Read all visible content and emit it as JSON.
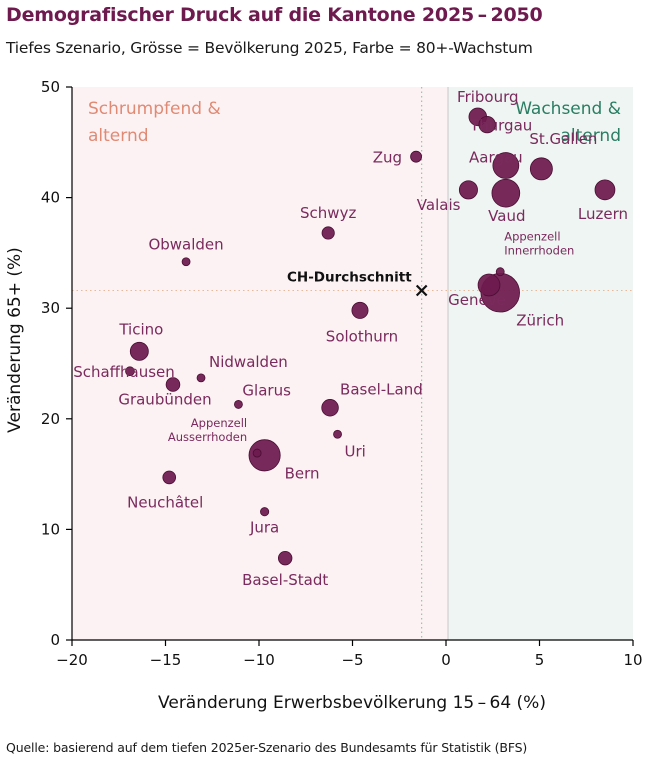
{
  "title": "Demografischer Druck auf die Kantone 2025 – 2050",
  "subtitle": "Tiefes Szenario, Grösse = Bevölkerung 2025, Farbe = 80+-Wachstum",
  "source": "Quelle: basierend auf dem tiefen 2025er-Szenario des Bundesamts für Statistik (BFS)",
  "colors": {
    "point": "#6e1a4f",
    "label": "#7a2a5c",
    "left_region": "#fcf2f3",
    "right_region": "#eef5f2",
    "left_region_text": "#e08a74",
    "right_region_text": "#2a7d63",
    "avg_v_line": "#7fbf9f",
    "avg_h_line": "#e8b89a",
    "zero_line": "#c8c8c8"
  },
  "regions": {
    "left": [
      "Schrumpfend &",
      "alternd"
    ],
    "right": [
      "Wachsend &",
      "alternd"
    ]
  },
  "chart_data": {
    "type": "scatter",
    "xlabel": "Veränderung Erwerbsbevölkerung 15 – 64 (%)",
    "ylabel": "Veränderung 65+ (%)",
    "xlim": [
      -20,
      10
    ],
    "ylim": [
      0,
      50
    ],
    "xticks": [
      "−20",
      "−15",
      "−10",
      "−5",
      "0",
      "5",
      "10"
    ],
    "yticks": [
      "0",
      "10",
      "20",
      "30",
      "40",
      "50"
    ],
    "xtick_values": [
      -20,
      -15,
      -10,
      -5,
      0,
      5,
      10
    ],
    "ytick_values": [
      0,
      10,
      20,
      30,
      40,
      50
    ],
    "average": {
      "label": "CH-Durchschnitt",
      "x": -1.3,
      "y": 31.6
    },
    "points": [
      {
        "name": "Zürich",
        "x": 2.9,
        "y": 31.4,
        "pop": 1620
      },
      {
        "name": "Genève",
        "x": 2.3,
        "y": 32.1,
        "pop": 520
      },
      {
        "name": "Appenzell Innerrhoden",
        "x": 2.9,
        "y": 33.3,
        "pop": 17
      },
      {
        "name": "Fribourg",
        "x": 1.7,
        "y": 47.3,
        "pop": 340
      },
      {
        "name": "Thurgau",
        "x": 2.2,
        "y": 46.6,
        "pop": 295
      },
      {
        "name": "Zug",
        "x": -1.6,
        "y": 43.7,
        "pop": 132
      },
      {
        "name": "Aargau",
        "x": 3.2,
        "y": 42.9,
        "pop": 730
      },
      {
        "name": "St.Gallen",
        "x": 5.1,
        "y": 42.6,
        "pop": 530
      },
      {
        "name": "Valais",
        "x": 1.2,
        "y": 40.7,
        "pop": 360
      },
      {
        "name": "Vaud",
        "x": 3.2,
        "y": 40.4,
        "pop": 840
      },
      {
        "name": "Luzern",
        "x": 8.5,
        "y": 40.7,
        "pop": 430
      },
      {
        "name": "Schwyz",
        "x": -6.3,
        "y": 36.8,
        "pop": 165
      },
      {
        "name": "Obwalden",
        "x": -13.9,
        "y": 34.2,
        "pop": 39
      },
      {
        "name": "Solothurn",
        "x": -4.6,
        "y": 29.8,
        "pop": 285
      },
      {
        "name": "Ticino",
        "x": -16.4,
        "y": 26.1,
        "pop": 355
      },
      {
        "name": "Schaffhausen",
        "x": -16.9,
        "y": 24.3,
        "pop": 85
      },
      {
        "name": "Graubünden",
        "x": -14.6,
        "y": 23.1,
        "pop": 205
      },
      {
        "name": "Nidwalden",
        "x": -13.1,
        "y": 23.7,
        "pop": 45
      },
      {
        "name": "Glarus",
        "x": -11.1,
        "y": 21.3,
        "pop": 42
      },
      {
        "name": "Basel-Land",
        "x": -6.2,
        "y": 21.0,
        "pop": 300
      },
      {
        "name": "Uri",
        "x": -5.8,
        "y": 18.6,
        "pop": 38
      },
      {
        "name": "Appenzell Ausserrhoden",
        "x": -10.1,
        "y": 16.9,
        "pop": 56
      },
      {
        "name": "Bern",
        "x": -9.7,
        "y": 16.7,
        "pop": 1060
      },
      {
        "name": "Neuchâtel",
        "x": -14.8,
        "y": 14.7,
        "pop": 178
      },
      {
        "name": "Jura",
        "x": -9.7,
        "y": 11.6,
        "pop": 75
      },
      {
        "name": "Basel-Stadt",
        "x": -8.6,
        "y": 7.4,
        "pop": 200
      }
    ]
  }
}
